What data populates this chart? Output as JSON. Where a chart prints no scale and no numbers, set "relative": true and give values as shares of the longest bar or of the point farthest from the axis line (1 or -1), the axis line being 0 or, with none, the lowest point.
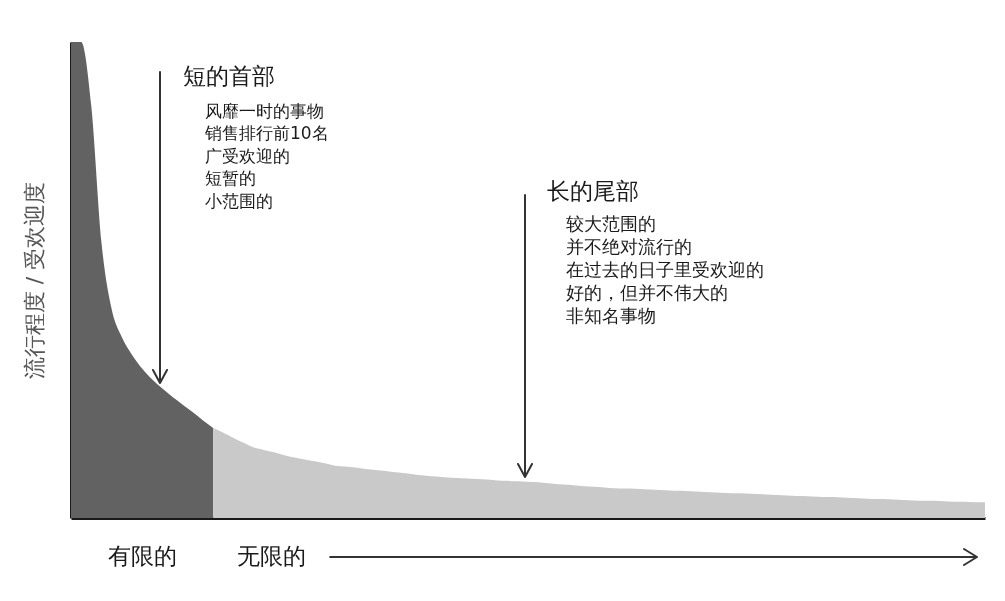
{
  "chart_data": {
    "type": "area",
    "relative": true,
    "legend": false,
    "ylabel": "流行程度 / 受欢迎度",
    "categories": [
      null,
      null,
      null,
      null,
      null,
      null,
      null,
      null,
      null,
      null,
      null,
      null,
      null,
      null,
      null,
      null,
      null,
      null,
      null,
      null,
      null,
      null,
      null,
      null,
      null,
      null,
      null,
      null,
      null,
      null,
      null,
      null,
      null,
      null,
      null,
      null,
      null,
      null,
      null,
      null,
      null,
      null,
      null,
      null,
      null,
      null,
      null,
      null,
      null,
      null,
      null,
      null,
      null,
      null,
      null,
      null,
      null,
      null,
      null,
      null,
      null,
      null,
      null,
      null,
      null,
      null,
      null,
      null,
      null,
      null,
      null,
      null,
      null,
      null,
      null,
      null,
      null,
      null,
      null,
      null,
      null,
      null,
      null,
      null,
      null,
      null,
      null,
      null,
      null,
      null,
      null
    ],
    "series": [
      {
        "name": "有限的",
        "color": "#626262",
        "values": [
          1.0,
          1.0,
          0.865,
          0.579,
          0.439,
          0.38,
          0.343,
          0.314,
          0.291,
          0.272,
          0.254,
          0.238,
          0.222,
          0.205,
          0.189,
          null,
          null,
          null,
          null,
          null,
          null,
          null,
          null,
          null,
          null,
          null,
          null,
          null,
          null,
          null,
          null,
          null,
          null,
          null,
          null,
          null,
          null,
          null,
          null,
          null,
          null,
          null,
          null,
          null,
          null,
          null,
          null,
          null,
          null,
          null,
          null,
          null,
          null,
          null,
          null,
          null,
          null,
          null,
          null,
          null,
          null,
          null,
          null,
          null,
          null,
          null,
          null,
          null,
          null,
          null,
          null,
          null,
          null,
          null,
          null,
          null,
          null,
          null,
          null,
          null,
          null,
          null,
          null,
          null,
          null,
          null,
          null,
          null,
          null,
          null,
          null
        ]
      },
      {
        "name": "无限的",
        "color": "#c9c9c9",
        "values": [
          null,
          null,
          null,
          null,
          null,
          null,
          null,
          null,
          null,
          null,
          null,
          null,
          null,
          null,
          0.189,
          0.179,
          0.168,
          0.158,
          0.148,
          0.143,
          0.138,
          0.132,
          0.127,
          0.123,
          0.119,
          0.115,
          0.11,
          0.108,
          0.106,
          0.103,
          0.101,
          0.099,
          0.096,
          0.094,
          0.091,
          0.089,
          0.087,
          0.085,
          0.084,
          0.083,
          0.082,
          0.081,
          0.079,
          0.078,
          0.077,
          0.076,
          0.075,
          0.073,
          0.071,
          0.07,
          0.068,
          0.066,
          0.065,
          0.063,
          0.062,
          0.062,
          0.061,
          0.06,
          0.059,
          0.058,
          0.057,
          0.056,
          0.055,
          0.054,
          0.053,
          0.052,
          0.052,
          0.051,
          0.05,
          0.049,
          0.048,
          0.047,
          0.046,
          0.045,
          0.044,
          0.044,
          0.043,
          0.042,
          0.041,
          0.04,
          0.04,
          0.039,
          0.038,
          0.037,
          0.036,
          0.036,
          0.035,
          0.034,
          0.034,
          0.033,
          0.033
        ]
      }
    ],
    "annotations": [
      "短的首部",
      "风靡一时的事物",
      "销售排行前10名",
      "广受欢迎的",
      "短暂的",
      "小范围的",
      "长的尾部",
      "较大范围的",
      "并不绝对流行的",
      "在过去的日子里受欢迎的",
      "好的，但并不伟大的",
      "非知名事物"
    ]
  }
}
